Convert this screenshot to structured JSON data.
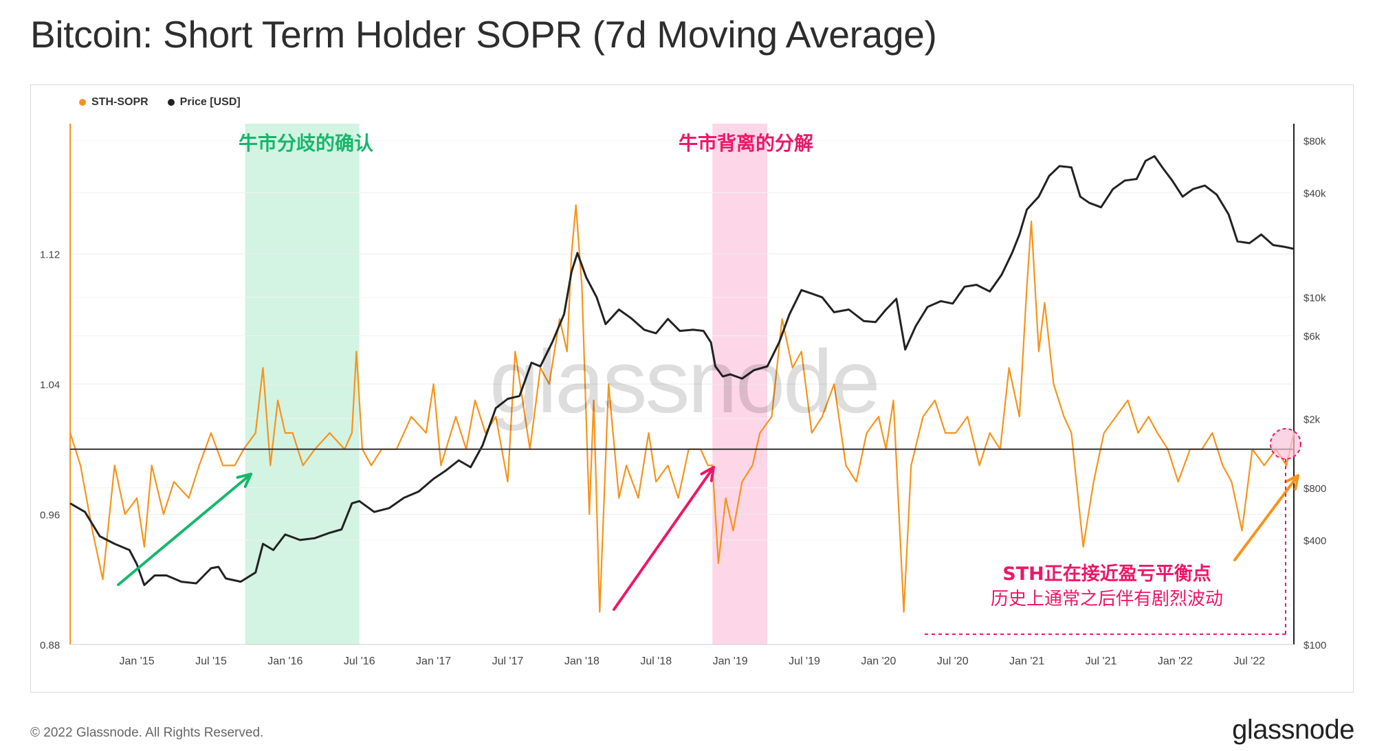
{
  "title": "Bitcoin: Short Term Holder SOPR (7d Moving Average)",
  "footer": {
    "copyright": "© 2022 Glassnode. All Rights Reserved.",
    "brand": "glassnode"
  },
  "watermark": "glassnode",
  "legend": [
    {
      "label": "STH-SOPR",
      "color": "#f7931a"
    },
    {
      "label": "Price [USD]",
      "color": "#222222"
    }
  ],
  "annotations": {
    "green_band_label": "牛市分歧的确认",
    "pink_band_label": "牛市背离的分解",
    "note_line1": "STH正在接近盈亏平衡点",
    "note_line2": "历史上通常之后伴有剧烈波动",
    "green_color": "#14b86b",
    "pink_color": "#ee1667",
    "orange_color": "#f7931a"
  },
  "chart_data": {
    "type": "line",
    "x_range": [
      2014.55,
      2022.8
    ],
    "x_ticks": [
      {
        "t": 2015.0,
        "label": "Jan '15"
      },
      {
        "t": 2015.5,
        "label": "Jul '15"
      },
      {
        "t": 2016.0,
        "label": "Jan '16"
      },
      {
        "t": 2016.5,
        "label": "Jul '16"
      },
      {
        "t": 2017.0,
        "label": "Jan '17"
      },
      {
        "t": 2017.5,
        "label": "Jul '17"
      },
      {
        "t": 2018.0,
        "label": "Jan '18"
      },
      {
        "t": 2018.5,
        "label": "Jul '18"
      },
      {
        "t": 2019.0,
        "label": "Jan '19"
      },
      {
        "t": 2019.5,
        "label": "Jul '19"
      },
      {
        "t": 2020.0,
        "label": "Jan '20"
      },
      {
        "t": 2020.5,
        "label": "Jul '20"
      },
      {
        "t": 2021.0,
        "label": "Jan '21"
      },
      {
        "t": 2021.5,
        "label": "Jul '21"
      },
      {
        "t": 2022.0,
        "label": "Jan '22"
      },
      {
        "t": 2022.5,
        "label": "Jul '22"
      }
    ],
    "left_axis": {
      "range": [
        0.88,
        1.2
      ],
      "ticks": [
        "0.88",
        "0.96",
        "1.04",
        "1.12"
      ]
    },
    "right_axis": {
      "scale": "log",
      "range": [
        100,
        100000
      ],
      "ticks": [
        {
          "v": 100,
          "label": "$100"
        },
        {
          "v": 400,
          "label": "$400"
        },
        {
          "v": 800,
          "label": "$800"
        },
        {
          "v": 2000,
          "label": "$2k"
        },
        {
          "v": 6000,
          "label": "$6k"
        },
        {
          "v": 10000,
          "label": "$10k"
        },
        {
          "v": 40000,
          "label": "$40k"
        },
        {
          "v": 80000,
          "label": "$80k"
        }
      ]
    },
    "baseline": 1.0,
    "bands": [
      {
        "from": 2015.73,
        "to": 2016.5,
        "color": "#d3f3e3"
      },
      {
        "from": 2018.88,
        "to": 2019.25,
        "color": "#fdd6e8"
      }
    ],
    "series": [
      {
        "name": "STH-SOPR",
        "axis": "left",
        "color": "#f7931a",
        "points": [
          [
            2014.55,
            1.01
          ],
          [
            2014.62,
            0.99
          ],
          [
            2014.7,
            0.95
          ],
          [
            2014.77,
            0.92
          ],
          [
            2014.85,
            0.99
          ],
          [
            2014.92,
            0.96
          ],
          [
            2015.0,
            0.97
          ],
          [
            2015.05,
            0.94
          ],
          [
            2015.1,
            0.99
          ],
          [
            2015.18,
            0.96
          ],
          [
            2015.25,
            0.98
          ],
          [
            2015.35,
            0.97
          ],
          [
            2015.42,
            0.99
          ],
          [
            2015.5,
            1.01
          ],
          [
            2015.58,
            0.99
          ],
          [
            2015.66,
            0.99
          ],
          [
            2015.72,
            1.0
          ],
          [
            2015.8,
            1.01
          ],
          [
            2015.85,
            1.05
          ],
          [
            2015.9,
            0.99
          ],
          [
            2015.95,
            1.03
          ],
          [
            2016.0,
            1.01
          ],
          [
            2016.05,
            1.01
          ],
          [
            2016.12,
            0.99
          ],
          [
            2016.2,
            1.0
          ],
          [
            2016.3,
            1.01
          ],
          [
            2016.4,
            1.0
          ],
          [
            2016.45,
            1.01
          ],
          [
            2016.48,
            1.06
          ],
          [
            2016.52,
            1.0
          ],
          [
            2016.58,
            0.99
          ],
          [
            2016.65,
            1.0
          ],
          [
            2016.75,
            1.0
          ],
          [
            2016.85,
            1.02
          ],
          [
            2016.95,
            1.01
          ],
          [
            2017.0,
            1.04
          ],
          [
            2017.05,
            0.99
          ],
          [
            2017.15,
            1.02
          ],
          [
            2017.22,
            1.0
          ],
          [
            2017.28,
            1.03
          ],
          [
            2017.35,
            1.01
          ],
          [
            2017.42,
            1.02
          ],
          [
            2017.5,
            0.98
          ],
          [
            2017.55,
            1.06
          ],
          [
            2017.6,
            1.03
          ],
          [
            2017.65,
            1.0
          ],
          [
            2017.72,
            1.05
          ],
          [
            2017.78,
            1.04
          ],
          [
            2017.85,
            1.08
          ],
          [
            2017.9,
            1.06
          ],
          [
            2017.93,
            1.12
          ],
          [
            2017.96,
            1.15
          ],
          [
            2018.0,
            1.1
          ],
          [
            2018.05,
            0.96
          ],
          [
            2018.08,
            1.03
          ],
          [
            2018.12,
            0.9
          ],
          [
            2018.18,
            1.04
          ],
          [
            2018.25,
            0.97
          ],
          [
            2018.3,
            0.99
          ],
          [
            2018.38,
            0.97
          ],
          [
            2018.45,
            1.01
          ],
          [
            2018.5,
            0.98
          ],
          [
            2018.58,
            0.99
          ],
          [
            2018.65,
            0.97
          ],
          [
            2018.72,
            1.0
          ],
          [
            2018.8,
            1.0
          ],
          [
            2018.85,
            0.99
          ],
          [
            2018.88,
            0.99
          ],
          [
            2018.92,
            0.93
          ],
          [
            2018.97,
            0.97
          ],
          [
            2019.02,
            0.95
          ],
          [
            2019.08,
            0.98
          ],
          [
            2019.15,
            0.99
          ],
          [
            2019.2,
            1.01
          ],
          [
            2019.28,
            1.02
          ],
          [
            2019.35,
            1.08
          ],
          [
            2019.42,
            1.05
          ],
          [
            2019.48,
            1.06
          ],
          [
            2019.55,
            1.01
          ],
          [
            2019.62,
            1.02
          ],
          [
            2019.7,
            1.04
          ],
          [
            2019.78,
            0.99
          ],
          [
            2019.85,
            0.98
          ],
          [
            2019.92,
            1.01
          ],
          [
            2020.0,
            1.02
          ],
          [
            2020.05,
            1.0
          ],
          [
            2020.1,
            1.03
          ],
          [
            2020.17,
            0.9
          ],
          [
            2020.22,
            0.99
          ],
          [
            2020.3,
            1.02
          ],
          [
            2020.38,
            1.03
          ],
          [
            2020.45,
            1.01
          ],
          [
            2020.52,
            1.01
          ],
          [
            2020.6,
            1.02
          ],
          [
            2020.68,
            0.99
          ],
          [
            2020.75,
            1.01
          ],
          [
            2020.82,
            1.0
          ],
          [
            2020.88,
            1.05
          ],
          [
            2020.95,
            1.02
          ],
          [
            2021.0,
            1.1
          ],
          [
            2021.03,
            1.14
          ],
          [
            2021.08,
            1.06
          ],
          [
            2021.12,
            1.09
          ],
          [
            2021.18,
            1.04
          ],
          [
            2021.25,
            1.02
          ],
          [
            2021.3,
            1.01
          ],
          [
            2021.38,
            0.94
          ],
          [
            2021.45,
            0.98
          ],
          [
            2021.52,
            1.01
          ],
          [
            2021.6,
            1.02
          ],
          [
            2021.68,
            1.03
          ],
          [
            2021.75,
            1.01
          ],
          [
            2021.82,
            1.02
          ],
          [
            2021.88,
            1.01
          ],
          [
            2021.95,
            1.0
          ],
          [
            2022.02,
            0.98
          ],
          [
            2022.1,
            1.0
          ],
          [
            2022.18,
            1.0
          ],
          [
            2022.25,
            1.01
          ],
          [
            2022.32,
            0.99
          ],
          [
            2022.38,
            0.98
          ],
          [
            2022.45,
            0.95
          ],
          [
            2022.52,
            1.0
          ],
          [
            2022.6,
            0.99
          ],
          [
            2022.68,
            1.0
          ],
          [
            2022.75,
            0.99
          ],
          [
            2022.8,
            1.01
          ]
        ]
      },
      {
        "name": "Price [USD]",
        "axis": "right",
        "color": "#222222",
        "points": [
          [
            2014.55,
            650
          ],
          [
            2014.65,
            580
          ],
          [
            2014.75,
            420
          ],
          [
            2014.85,
            380
          ],
          [
            2014.95,
            350
          ],
          [
            2015.0,
            290
          ],
          [
            2015.05,
            220
          ],
          [
            2015.12,
            250
          ],
          [
            2015.2,
            250
          ],
          [
            2015.3,
            230
          ],
          [
            2015.4,
            225
          ],
          [
            2015.5,
            275
          ],
          [
            2015.55,
            280
          ],
          [
            2015.6,
            240
          ],
          [
            2015.7,
            230
          ],
          [
            2015.8,
            260
          ],
          [
            2015.85,
            380
          ],
          [
            2015.92,
            350
          ],
          [
            2016.0,
            430
          ],
          [
            2016.1,
            400
          ],
          [
            2016.2,
            410
          ],
          [
            2016.3,
            440
          ],
          [
            2016.38,
            460
          ],
          [
            2016.45,
            650
          ],
          [
            2016.5,
            670
          ],
          [
            2016.6,
            580
          ],
          [
            2016.7,
            610
          ],
          [
            2016.8,
            700
          ],
          [
            2016.9,
            760
          ],
          [
            2017.0,
            900
          ],
          [
            2017.08,
            1000
          ],
          [
            2017.17,
            1150
          ],
          [
            2017.25,
            1050
          ],
          [
            2017.33,
            1400
          ],
          [
            2017.42,
            2300
          ],
          [
            2017.5,
            2600
          ],
          [
            2017.58,
            2700
          ],
          [
            2017.66,
            4200
          ],
          [
            2017.72,
            4000
          ],
          [
            2017.8,
            5500
          ],
          [
            2017.88,
            8000
          ],
          [
            2017.93,
            14000
          ],
          [
            2017.97,
            18000
          ],
          [
            2018.03,
            13000
          ],
          [
            2018.1,
            10000
          ],
          [
            2018.16,
            7000
          ],
          [
            2018.25,
            8500
          ],
          [
            2018.33,
            7600
          ],
          [
            2018.42,
            6500
          ],
          [
            2018.5,
            6200
          ],
          [
            2018.58,
            7500
          ],
          [
            2018.66,
            6400
          ],
          [
            2018.75,
            6500
          ],
          [
            2018.82,
            6400
          ],
          [
            2018.87,
            5500
          ],
          [
            2018.9,
            4000
          ],
          [
            2018.95,
            3500
          ],
          [
            2019.0,
            3600
          ],
          [
            2019.08,
            3400
          ],
          [
            2019.16,
            3800
          ],
          [
            2019.25,
            4000
          ],
          [
            2019.33,
            5500
          ],
          [
            2019.4,
            8000
          ],
          [
            2019.48,
            11000
          ],
          [
            2019.55,
            10500
          ],
          [
            2019.62,
            10000
          ],
          [
            2019.7,
            8200
          ],
          [
            2019.8,
            8500
          ],
          [
            2019.9,
            7300
          ],
          [
            2019.98,
            7200
          ],
          [
            2020.05,
            8500
          ],
          [
            2020.12,
            9800
          ],
          [
            2020.18,
            5000
          ],
          [
            2020.25,
            6800
          ],
          [
            2020.33,
            8800
          ],
          [
            2020.42,
            9500
          ],
          [
            2020.5,
            9200
          ],
          [
            2020.58,
            11500
          ],
          [
            2020.66,
            11800
          ],
          [
            2020.75,
            10800
          ],
          [
            2020.83,
            13500
          ],
          [
            2020.9,
            18000
          ],
          [
            2020.95,
            23000
          ],
          [
            2021.0,
            32000
          ],
          [
            2021.08,
            38000
          ],
          [
            2021.15,
            50000
          ],
          [
            2021.22,
            57000
          ],
          [
            2021.3,
            56000
          ],
          [
            2021.36,
            38000
          ],
          [
            2021.42,
            35000
          ],
          [
            2021.5,
            33000
          ],
          [
            2021.58,
            42000
          ],
          [
            2021.66,
            47000
          ],
          [
            2021.74,
            48000
          ],
          [
            2021.8,
            61000
          ],
          [
            2021.86,
            65000
          ],
          [
            2021.92,
            55000
          ],
          [
            2021.98,
            47000
          ],
          [
            2022.05,
            38000
          ],
          [
            2022.12,
            42000
          ],
          [
            2022.2,
            44000
          ],
          [
            2022.28,
            39000
          ],
          [
            2022.36,
            30000
          ],
          [
            2022.42,
            21000
          ],
          [
            2022.5,
            20500
          ],
          [
            2022.58,
            23000
          ],
          [
            2022.66,
            20000
          ],
          [
            2022.74,
            19500
          ],
          [
            2022.8,
            19000
          ]
        ]
      }
    ]
  }
}
